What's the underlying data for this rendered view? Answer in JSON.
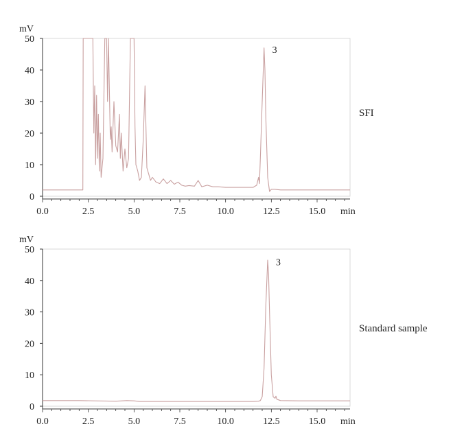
{
  "chart_data": [
    {
      "type": "line",
      "title": "",
      "side_label": "SFI",
      "ylabel": "mV",
      "xlabel": "min",
      "ylim": [
        0,
        50
      ],
      "xlim": [
        0,
        16.8
      ],
      "y_ticks": [
        0,
        10,
        20,
        30,
        40,
        50
      ],
      "x_ticks": [
        0.0,
        2.5,
        5.0,
        7.5,
        10.0,
        12.5,
        15.0
      ],
      "x_tick_labels": [
        "0.0",
        "2.5",
        "5.0",
        "7.5",
        "10.0",
        "12.5",
        "15.0"
      ],
      "peak_label": {
        "text": "3",
        "x": 12.55,
        "y": 46.5
      },
      "series": [
        {
          "color": "#c9a0a0",
          "x": [
            0,
            2.2,
            2.22,
            2.45,
            2.5,
            2.6,
            2.7,
            2.75,
            2.8,
            2.85,
            2.9,
            2.95,
            3.0,
            3.05,
            3.1,
            3.15,
            3.2,
            3.3,
            3.4,
            3.5,
            3.55,
            3.6,
            3.7,
            3.75,
            3.8,
            3.9,
            4.0,
            4.1,
            4.2,
            4.25,
            4.3,
            4.4,
            4.5,
            4.6,
            4.7,
            4.8,
            4.9,
            5.0,
            5.05,
            5.1,
            5.2,
            5.3,
            5.4,
            5.5,
            5.6,
            5.7,
            5.8,
            5.9,
            6.0,
            6.2,
            6.4,
            6.6,
            6.8,
            7.0,
            7.2,
            7.4,
            7.6,
            7.8,
            8.0,
            8.3,
            8.5,
            8.7,
            9.0,
            9.3,
            9.6,
            10.0,
            10.5,
            11.0,
            11.5,
            11.7,
            11.8,
            11.85,
            11.9,
            12.0,
            12.1,
            12.15,
            12.2,
            12.3,
            12.4,
            12.5,
            12.7,
            13.0,
            14.0,
            15.0,
            16.0,
            16.8
          ],
          "y": [
            2,
            2,
            50,
            50,
            50,
            50,
            50,
            50,
            20,
            35,
            10,
            32,
            12,
            26,
            8,
            20,
            6,
            12,
            50,
            50,
            30,
            50,
            18,
            22,
            14,
            30,
            16,
            14,
            26,
            12,
            20,
            8,
            15,
            9,
            12,
            50,
            50,
            50,
            22,
            10,
            8,
            5,
            6,
            18,
            35,
            9,
            7,
            5,
            6,
            4.5,
            4,
            5.5,
            4,
            5,
            3.8,
            4.5,
            3.5,
            3.2,
            3.4,
            3.2,
            5,
            3,
            3.5,
            3,
            3,
            2.8,
            2.8,
            2.8,
            2.8,
            3.5,
            6,
            4,
            12,
            30,
            47,
            40,
            25,
            6,
            1.5,
            2.2,
            2.2,
            2,
            2,
            2,
            2,
            2
          ]
        }
      ]
    },
    {
      "type": "line",
      "title": "",
      "side_label": "Standard sample",
      "ylabel": "mV",
      "xlabel": "min",
      "ylim": [
        0,
        50
      ],
      "xlim": [
        0,
        16.8
      ],
      "y_ticks": [
        0,
        10,
        20,
        30,
        40,
        50
      ],
      "x_ticks": [
        0.0,
        2.5,
        5.0,
        7.5,
        10.0,
        12.5,
        15.0
      ],
      "x_tick_labels": [
        "0.0",
        "2.5",
        "5.0",
        "7.5",
        "10.0",
        "12.5",
        "15.0"
      ],
      "peak_label": {
        "text": "3",
        "x": 12.75,
        "y": 46
      },
      "series": [
        {
          "color": "#c9a0a0",
          "x": [
            0,
            2.0,
            4.0,
            4.6,
            5.0,
            5.3,
            6.0,
            8.0,
            10.0,
            11.5,
            11.8,
            11.9,
            12.0,
            12.1,
            12.2,
            12.3,
            12.35,
            12.4,
            12.5,
            12.6,
            12.7,
            12.75,
            12.8,
            12.9,
            13.0,
            14.0,
            15.0,
            16.0,
            16.8
          ],
          "y": [
            1.8,
            1.8,
            1.6,
            1.8,
            1.7,
            1.5,
            1.5,
            1.5,
            1.5,
            1.5,
            1.6,
            1.8,
            3,
            12,
            32,
            46.5,
            42,
            30,
            10,
            3,
            2.5,
            3.2,
            2.2,
            2,
            1.8,
            1.7,
            1.7,
            1.7,
            1.7
          ]
        }
      ]
    }
  ]
}
